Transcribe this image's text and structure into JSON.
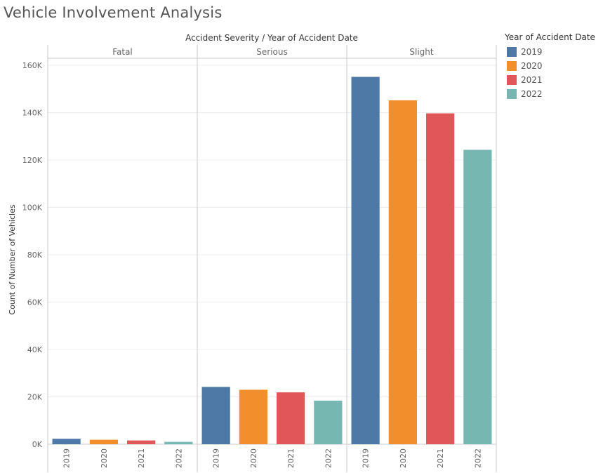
{
  "chart_data": {
    "type": "bar",
    "title": "Vehicle Involvement Analysis",
    "header": "Accident Severity  /  Year of Accident Date",
    "ylabel": "Count of Number of Vehicles",
    "ylim": [
      0,
      165000
    ],
    "yticks": [
      0,
      20000,
      40000,
      60000,
      80000,
      100000,
      120000,
      140000,
      160000
    ],
    "ytick_labels": [
      "0K",
      "20K",
      "40K",
      "60K",
      "80K",
      "100K",
      "120K",
      "140K",
      "160K"
    ],
    "groups": [
      "Fatal",
      "Serious",
      "Slight"
    ],
    "categories": [
      "2019",
      "2020",
      "2021",
      "2022"
    ],
    "series": [
      {
        "group": "Fatal",
        "values": [
          2300,
          1900,
          1600,
          1000
        ]
      },
      {
        "group": "Serious",
        "values": [
          24200,
          23000,
          21900,
          18400
        ]
      },
      {
        "group": "Slight",
        "values": [
          155100,
          145200,
          139700,
          124300
        ]
      }
    ],
    "colors": {
      "2019": "#4e79a7",
      "2020": "#f28e2b",
      "2021": "#e15759",
      "2022": "#76b7b2"
    },
    "legend": {
      "title": "Year of Accident Date",
      "position": "right",
      "items": [
        "2019",
        "2020",
        "2021",
        "2022"
      ]
    },
    "grid": true
  }
}
